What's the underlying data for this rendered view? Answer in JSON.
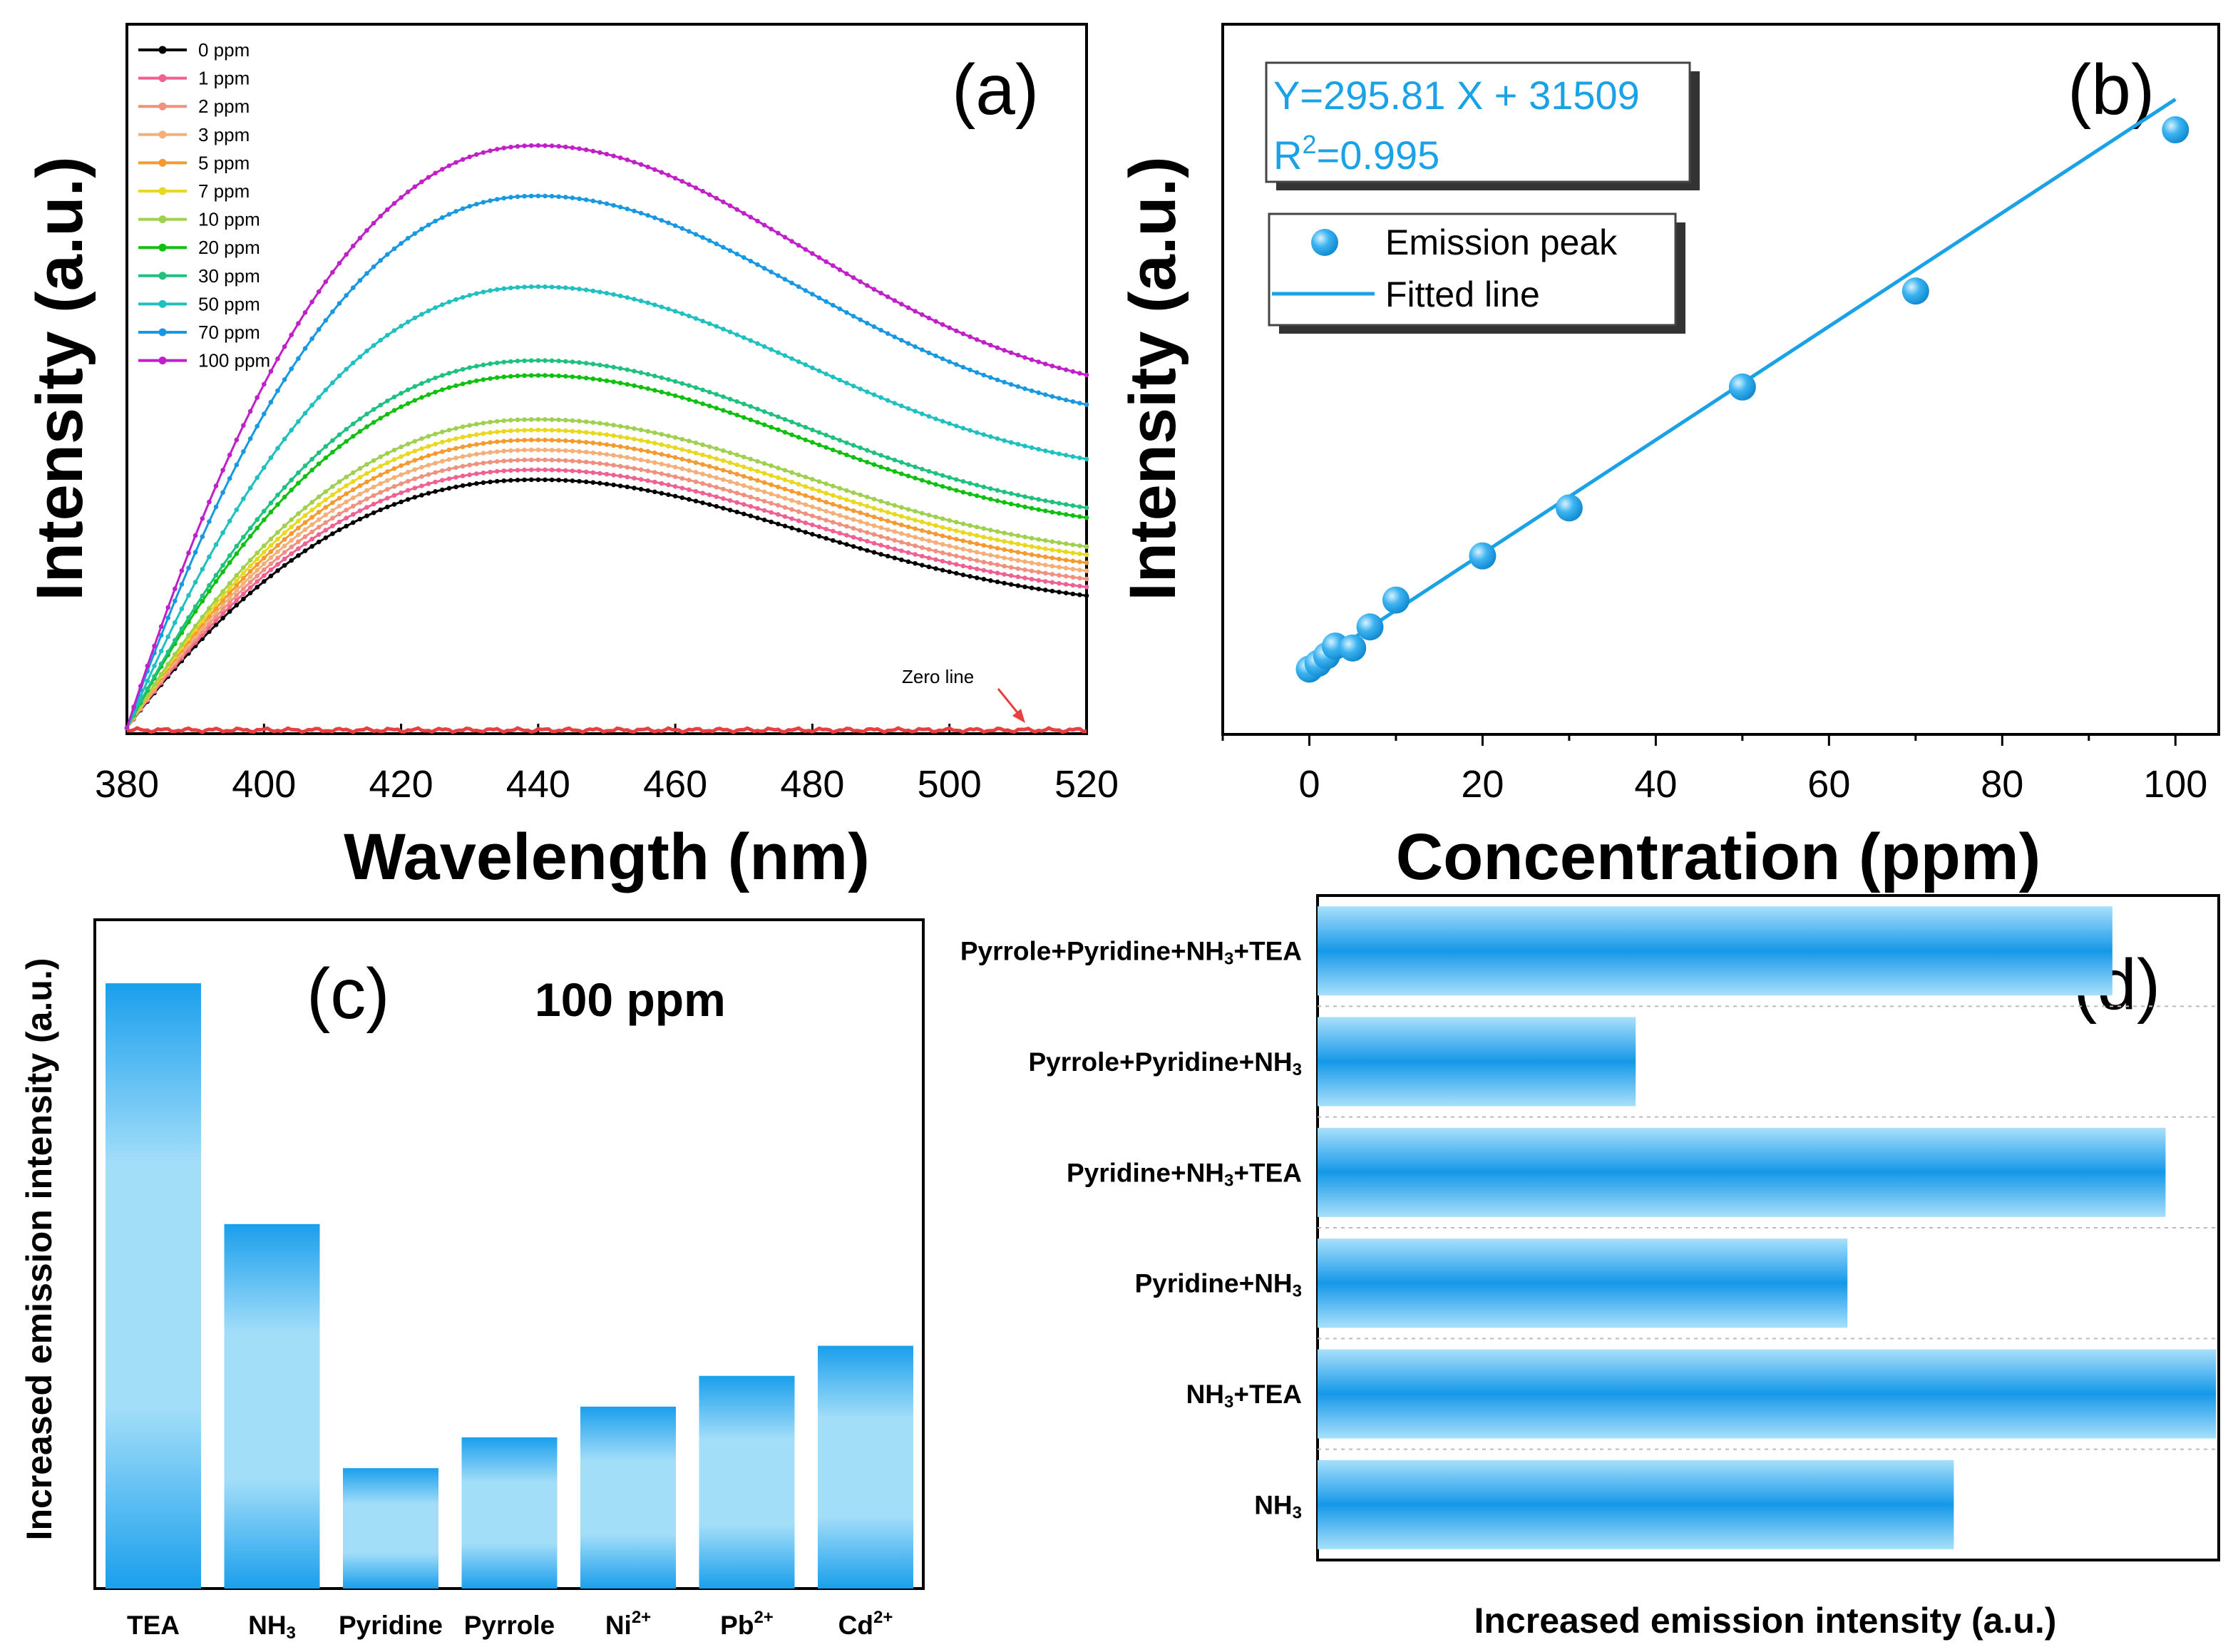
{
  "chart_data": [
    {
      "panel": "(a)",
      "type": "line",
      "xlabel": "Wavelength (nm)",
      "ylabel": "Intensity (a.u.)",
      "xlim": [
        380,
        520
      ],
      "ylim": [
        0,
        1
      ],
      "x_ticks": [
        "380",
        "400",
        "420",
        "440",
        "460",
        "480",
        "500",
        "520"
      ],
      "peak_wavelength": 440,
      "annotation": "Zero line",
      "zero_line_color": "#e84040",
      "series": [
        {
          "name": "0 ppm",
          "peak": 0.358,
          "end": 0.173,
          "color": "#000000"
        },
        {
          "name": "1 ppm",
          "peak": 0.372,
          "end": 0.185,
          "color": "#f06090"
        },
        {
          "name": "2 ppm",
          "peak": 0.386,
          "end": 0.196,
          "color": "#f0907f"
        },
        {
          "name": "3 ppm",
          "peak": 0.4,
          "end": 0.207,
          "color": "#f5b07a"
        },
        {
          "name": "5 ppm",
          "peak": 0.414,
          "end": 0.218,
          "color": "#f59a30"
        },
        {
          "name": "7 ppm",
          "peak": 0.428,
          "end": 0.229,
          "color": "#e8d820"
        },
        {
          "name": "10 ppm",
          "peak": 0.443,
          "end": 0.24,
          "color": "#a0d050"
        },
        {
          "name": "20 ppm",
          "peak": 0.505,
          "end": 0.278,
          "color": "#10c010"
        },
        {
          "name": "30 ppm",
          "peak": 0.526,
          "end": 0.291,
          "color": "#20c080"
        },
        {
          "name": "50 ppm",
          "peak": 0.63,
          "end": 0.355,
          "color": "#20c0c0"
        },
        {
          "name": "70 ppm",
          "peak": 0.758,
          "end": 0.425,
          "color": "#1898e0"
        },
        {
          "name": "100 ppm",
          "peak": 0.829,
          "end": 0.463,
          "color": "#c020c8"
        }
      ]
    },
    {
      "panel": "(b)",
      "type": "scatter",
      "xlabel": "Concentration (ppm)",
      "ylabel": "Intensity (a.u.)",
      "xlim": [
        -10,
        105
      ],
      "ylim": [
        28000,
        65000
      ],
      "x_ticks": [
        "0",
        "20",
        "40",
        "60",
        "80",
        "100"
      ],
      "equation": "Y=295.81 X + 31509",
      "r2_prefix": "R",
      "r2_sup": "2",
      "r2_value": "=0.995",
      "fit": {
        "slope": 295.81,
        "intercept": 31509
      },
      "legend": [
        "Emission peak",
        "Fitted line"
      ],
      "color": "#1ba2e6",
      "x": [
        0,
        1,
        2,
        3,
        5,
        7,
        10,
        20,
        30,
        50,
        70,
        100
      ],
      "y": [
        31400,
        31700,
        32100,
        32600,
        32500,
        33600,
        35000,
        37300,
        39800,
        46100,
        51100,
        59500
      ]
    },
    {
      "panel": "(c)",
      "type": "bar",
      "title": "100 ppm",
      "ylabel": "Increased emission intensity (a.u.)",
      "ylim": [
        0,
        1
      ],
      "categories": [
        {
          "main": "TEA",
          "sup": ""
        },
        {
          "main": "NH",
          "sub": "3",
          "sup": ""
        },
        {
          "main": "Pyridine",
          "sup": ""
        },
        {
          "main": "Pyrrole",
          "sup": ""
        },
        {
          "main": "Ni",
          "sup": "2+"
        },
        {
          "main": "Pb",
          "sup": "2+"
        },
        {
          "main": "Cd",
          "sup": "2+"
        }
      ],
      "values": [
        0.905,
        0.545,
        0.18,
        0.226,
        0.272,
        0.318,
        0.363
      ]
    },
    {
      "panel": "(d)",
      "type": "bar",
      "orientation": "horizontal",
      "xlabel": "Increased emission intensity (a.u.)",
      "xlim": [
        0,
        1
      ],
      "categories": [
        {
          "label": "NH",
          "sub": "3",
          "after": ""
        },
        {
          "label": "NH",
          "sub": "3",
          "after": "+TEA"
        },
        {
          "label": "Pyridine+NH",
          "sub": "3",
          "after": ""
        },
        {
          "label": "Pyridine+NH",
          "sub": "3",
          "after": "+TEA"
        },
        {
          "label": "Pyrrole+Pyridine+NH",
          "sub": "3",
          "after": ""
        },
        {
          "label": "Pyrrole+Pyridine+NH",
          "sub": "3",
          "after": "+TEA"
        }
      ],
      "values": [
        0.706,
        0.997,
        0.588,
        0.941,
        0.353,
        0.882
      ]
    }
  ]
}
